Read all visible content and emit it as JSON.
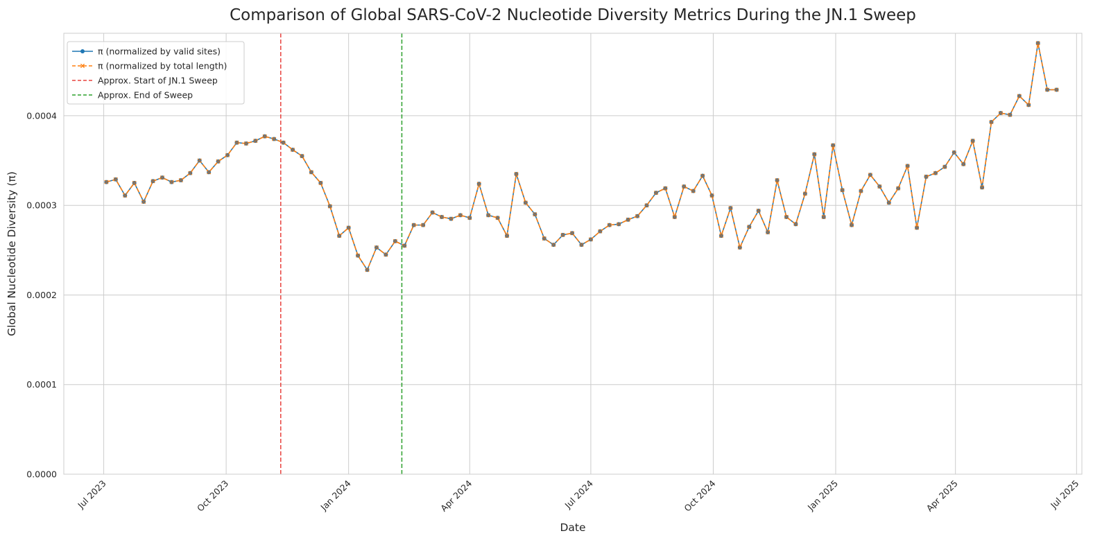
{
  "chart_data": {
    "type": "line",
    "title": "Comparison of Global SARS-CoV-2 Nucleotide Diversity Metrics During the JN.1 Sweep",
    "xlabel": "Date",
    "ylabel": "Global Nucleotide Diversity (π)",
    "xlim": [
      "2023-06-01",
      "2025-07-05"
    ],
    "ylim": [
      0,
      0.000492
    ],
    "x_ticks": [
      {
        "date": "2023-07-01",
        "label": "Jul 2023"
      },
      {
        "date": "2023-10-01",
        "label": "Oct 2023"
      },
      {
        "date": "2024-01-01",
        "label": "Jan 2024"
      },
      {
        "date": "2024-04-01",
        "label": "Apr 2024"
      },
      {
        "date": "2024-07-01",
        "label": "Jul 2024"
      },
      {
        "date": "2024-10-01",
        "label": "Oct 2024"
      },
      {
        "date": "2025-01-01",
        "label": "Jan 2025"
      },
      {
        "date": "2025-04-01",
        "label": "Apr 2025"
      },
      {
        "date": "2025-07-01",
        "label": "Jul 2025"
      }
    ],
    "y_ticks": [
      {
        "value": 0,
        "label": "0.0000"
      },
      {
        "value": 0.0001,
        "label": "0.0001"
      },
      {
        "value": 0.0002,
        "label": "0.0002"
      },
      {
        "value": 0.0003,
        "label": "0.0003"
      },
      {
        "value": 0.0004,
        "label": "0.0004"
      }
    ],
    "grid": true,
    "legend_position": "top-left",
    "x": [
      "2023-07-03",
      "2023-07-10",
      "2023-07-17",
      "2023-07-24",
      "2023-07-31",
      "2023-08-07",
      "2023-08-14",
      "2023-08-21",
      "2023-08-28",
      "2023-09-04",
      "2023-09-11",
      "2023-09-18",
      "2023-09-25",
      "2023-10-02",
      "2023-10-09",
      "2023-10-16",
      "2023-10-23",
      "2023-10-30",
      "2023-11-06",
      "2023-11-13",
      "2023-11-20",
      "2023-11-27",
      "2023-12-04",
      "2023-12-11",
      "2023-12-18",
      "2023-12-25",
      "2024-01-01",
      "2024-01-08",
      "2024-01-15",
      "2024-01-22",
      "2024-01-29",
      "2024-02-05",
      "2024-02-12",
      "2024-02-19",
      "2024-02-26",
      "2024-03-04",
      "2024-03-11",
      "2024-03-18",
      "2024-03-25",
      "2024-04-01",
      "2024-04-08",
      "2024-04-15",
      "2024-04-22",
      "2024-04-29",
      "2024-05-06",
      "2024-05-13",
      "2024-05-20",
      "2024-05-27",
      "2024-06-03",
      "2024-06-10",
      "2024-06-17",
      "2024-06-24",
      "2024-07-01",
      "2024-07-08",
      "2024-07-15",
      "2024-07-22",
      "2024-07-29",
      "2024-08-05",
      "2024-08-12",
      "2024-08-19",
      "2024-08-26",
      "2024-09-02",
      "2024-09-09",
      "2024-09-16",
      "2024-09-23",
      "2024-09-30",
      "2024-10-07",
      "2024-10-14",
      "2024-10-21",
      "2024-10-28",
      "2024-11-04",
      "2024-11-11",
      "2024-11-18",
      "2024-11-25",
      "2024-12-02",
      "2024-12-09",
      "2024-12-16",
      "2024-12-23",
      "2024-12-30",
      "2025-01-06",
      "2025-01-13",
      "2025-01-20",
      "2025-01-27",
      "2025-02-03",
      "2025-02-10",
      "2025-02-17",
      "2025-02-24",
      "2025-03-03",
      "2025-03-10",
      "2025-03-17",
      "2025-03-24",
      "2025-03-31",
      "2025-04-07",
      "2025-04-14",
      "2025-04-21",
      "2025-04-28",
      "2025-05-05",
      "2025-05-12",
      "2025-05-19",
      "2025-05-26",
      "2025-06-02",
      "2025-06-09",
      "2025-06-16"
    ],
    "series": [
      {
        "name": "π (normalized by valid sites)",
        "color": "#1f77b4",
        "linestyle": "solid",
        "marker": "circle",
        "values": [
          0.000326,
          0.000329,
          0.000311,
          0.000325,
          0.000304,
          0.000327,
          0.000331,
          0.000326,
          0.000328,
          0.000336,
          0.00035,
          0.000337,
          0.000349,
          0.000356,
          0.00037,
          0.000369,
          0.000372,
          0.000377,
          0.000374,
          0.00037,
          0.000362,
          0.000355,
          0.000337,
          0.000325,
          0.000299,
          0.000266,
          0.000275,
          0.000244,
          0.000228,
          0.000253,
          0.000245,
          0.00026,
          0.000255,
          0.000278,
          0.000278,
          0.000292,
          0.000287,
          0.000285,
          0.000289,
          0.000286,
          0.000324,
          0.000289,
          0.000286,
          0.000266,
          0.000335,
          0.000303,
          0.00029,
          0.000263,
          0.000256,
          0.000267,
          0.000269,
          0.000256,
          0.000262,
          0.000271,
          0.000278,
          0.000279,
          0.000284,
          0.000288,
          0.0003,
          0.000314,
          0.000319,
          0.000287,
          0.000321,
          0.000316,
          0.000333,
          0.000311,
          0.000266,
          0.000297,
          0.000253,
          0.000276,
          0.000294,
          0.00027,
          0.000328,
          0.000287,
          0.000279,
          0.000313,
          0.000357,
          0.000287,
          0.000367,
          0.000317,
          0.000278,
          0.000316,
          0.000334,
          0.000321,
          0.000303,
          0.000319,
          0.000344,
          0.000275,
          0.000332,
          0.000336,
          0.000343,
          0.000359,
          0.000346,
          0.000372,
          0.00032,
          0.000393,
          0.000403,
          0.000401,
          0.000422,
          0.000412,
          0.000481,
          0.000429,
          0.000429
        ]
      },
      {
        "name": "π (normalized by total length)",
        "color": "#ff7f0e",
        "linestyle": "dashed",
        "marker": "x",
        "values": [
          0.000326,
          0.000329,
          0.000311,
          0.000325,
          0.000304,
          0.000327,
          0.000331,
          0.000326,
          0.000328,
          0.000336,
          0.00035,
          0.000337,
          0.000349,
          0.000356,
          0.00037,
          0.000369,
          0.000372,
          0.000377,
          0.000374,
          0.00037,
          0.000362,
          0.000355,
          0.000337,
          0.000325,
          0.000299,
          0.000266,
          0.000275,
          0.000244,
          0.000228,
          0.000253,
          0.000245,
          0.00026,
          0.000255,
          0.000278,
          0.000278,
          0.000292,
          0.000287,
          0.000285,
          0.000289,
          0.000286,
          0.000324,
          0.000289,
          0.000286,
          0.000266,
          0.000335,
          0.000303,
          0.00029,
          0.000263,
          0.000256,
          0.000267,
          0.000269,
          0.000256,
          0.000262,
          0.000271,
          0.000278,
          0.000279,
          0.000284,
          0.000288,
          0.0003,
          0.000314,
          0.000319,
          0.000287,
          0.000321,
          0.000316,
          0.000333,
          0.000311,
          0.000266,
          0.000297,
          0.000253,
          0.000276,
          0.000294,
          0.00027,
          0.000328,
          0.000287,
          0.000279,
          0.000313,
          0.000357,
          0.000287,
          0.000367,
          0.000317,
          0.000278,
          0.000316,
          0.000334,
          0.000321,
          0.000303,
          0.000319,
          0.000344,
          0.000275,
          0.000332,
          0.000336,
          0.000343,
          0.000359,
          0.000346,
          0.000372,
          0.00032,
          0.000393,
          0.000403,
          0.000401,
          0.000422,
          0.000412,
          0.000481,
          0.000429,
          0.000429
        ]
      }
    ],
    "vlines": [
      {
        "name": "Approx. Start of JN.1 Sweep",
        "date": "2023-11-11",
        "color": "#e8433f",
        "linestyle": "dashed"
      },
      {
        "name": "Approx. End of Sweep",
        "date": "2024-02-10",
        "color": "#2ca02c",
        "linestyle": "dashed"
      }
    ]
  }
}
